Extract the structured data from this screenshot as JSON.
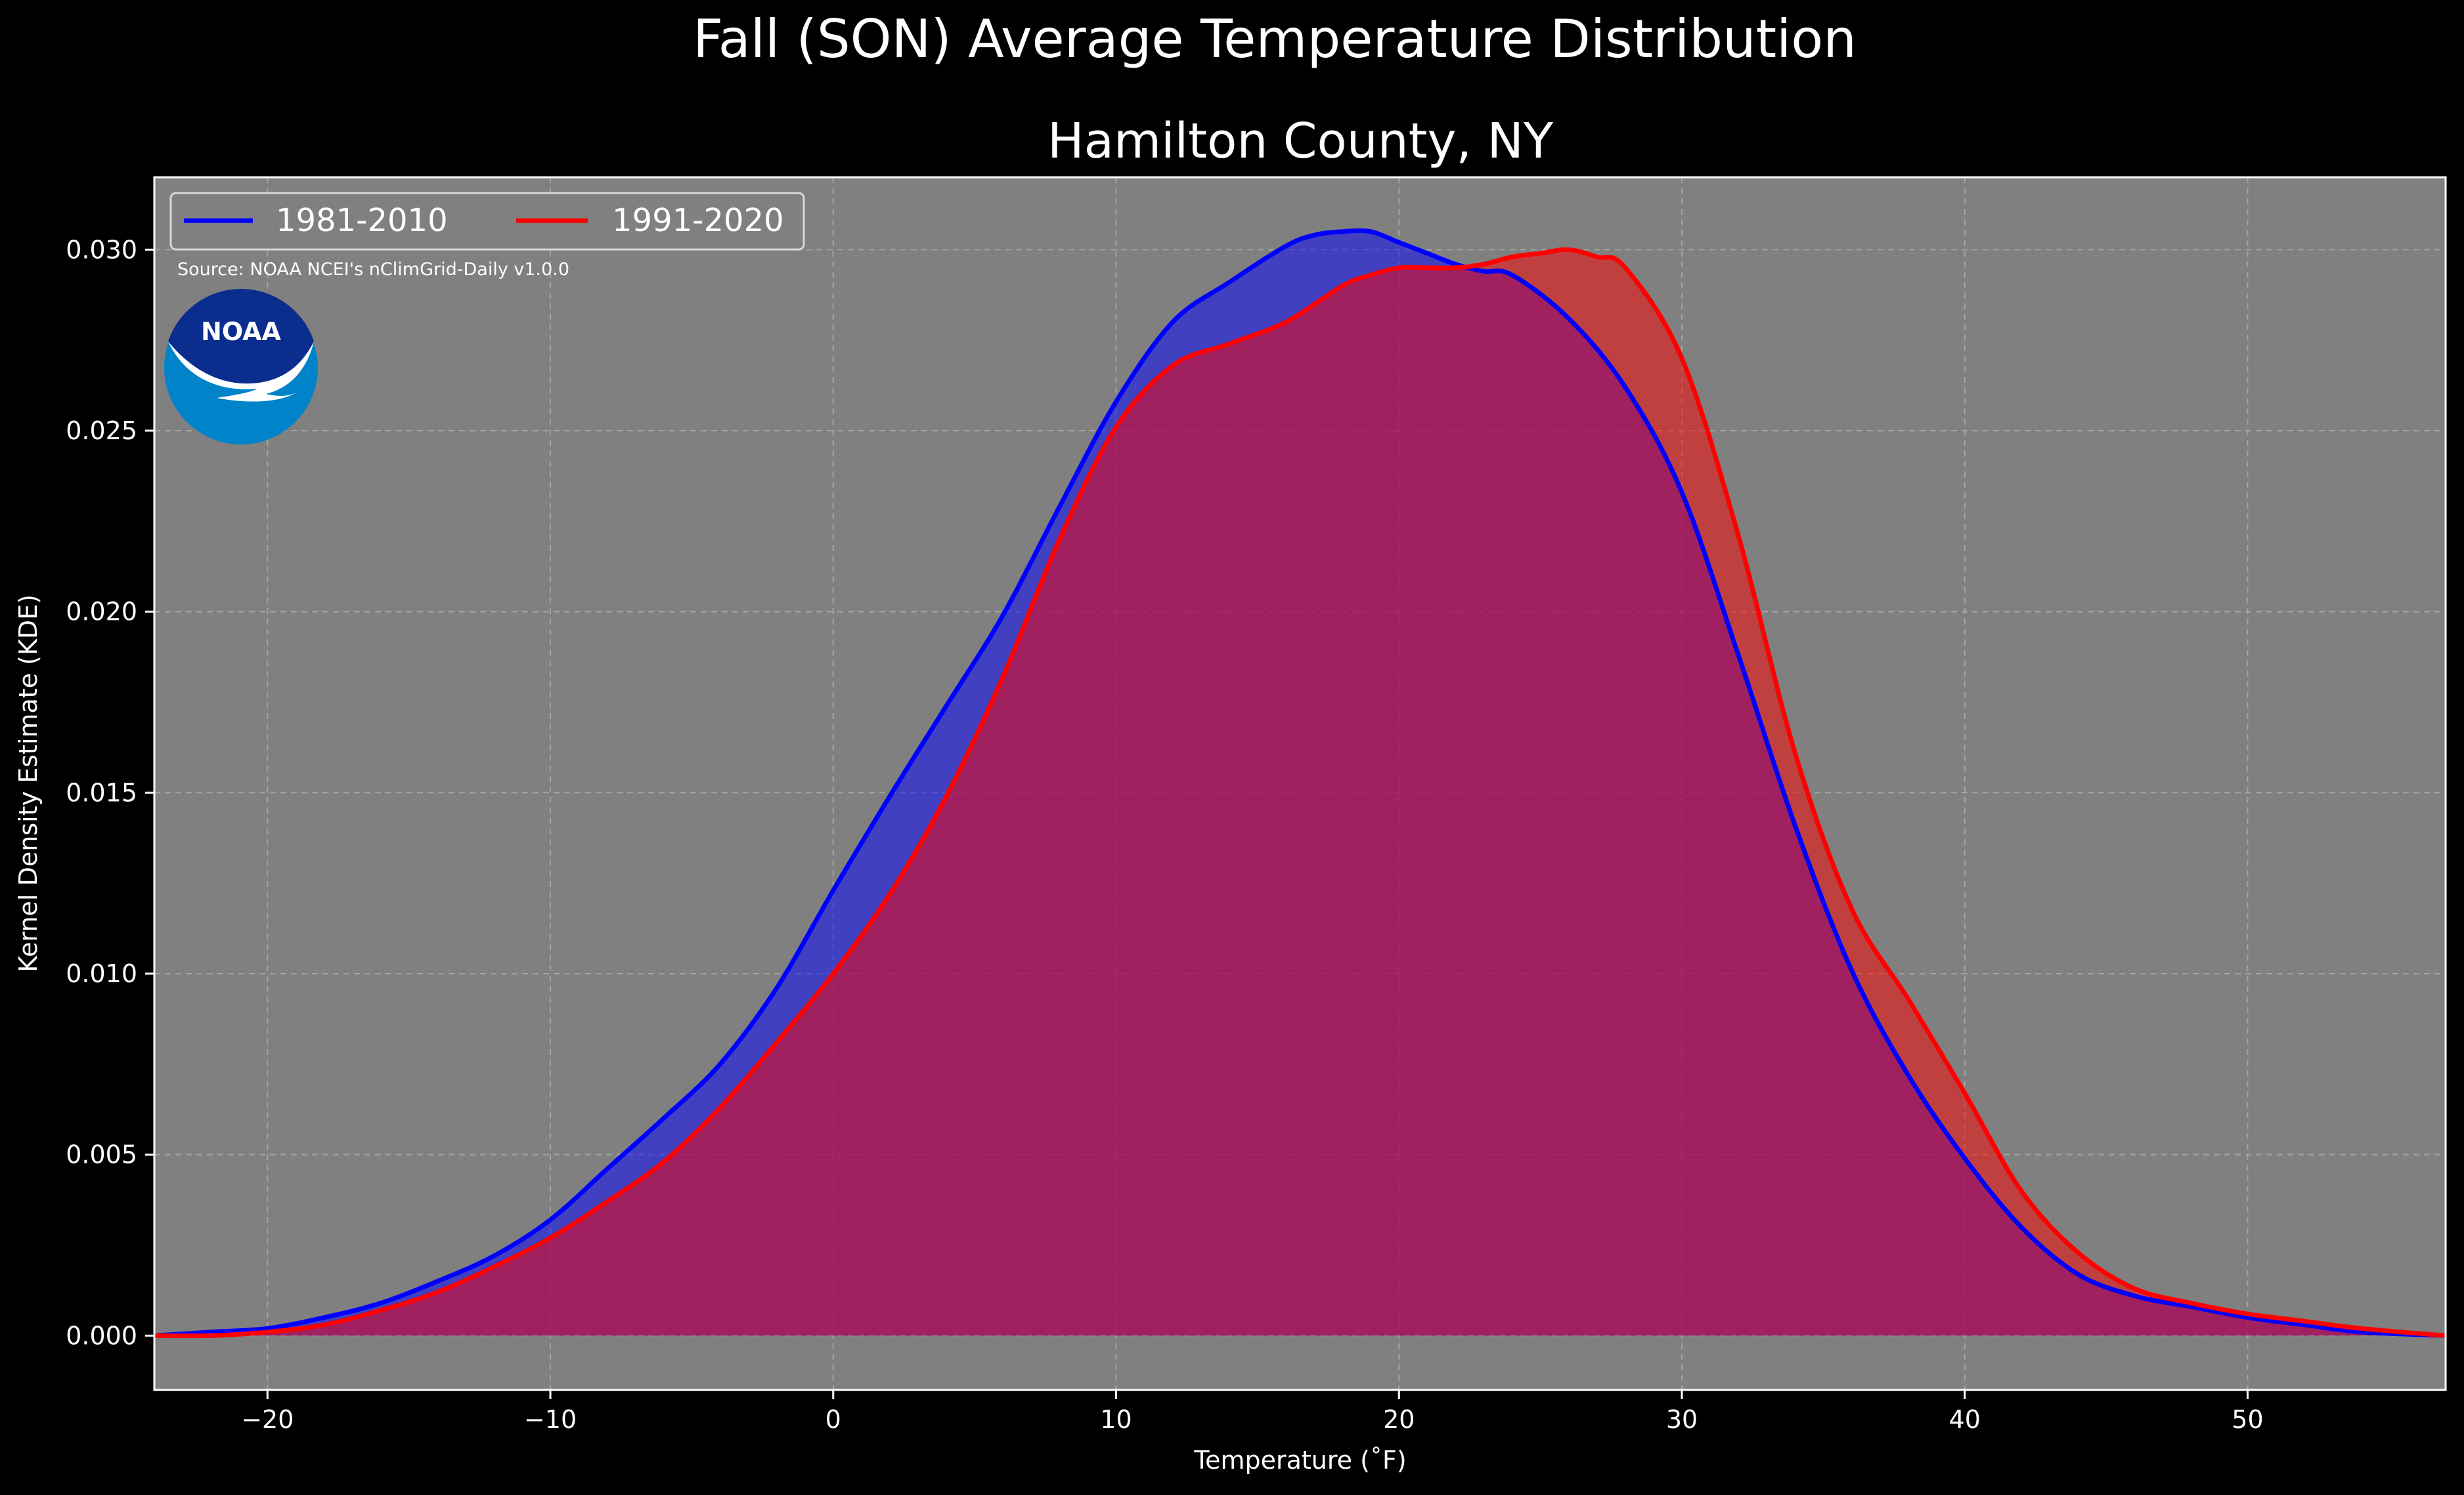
{
  "chart_data": {
    "type": "area",
    "title": "Fall (SON) Average Temperature Distribution",
    "subtitle": "Hamilton County, NY",
    "xlabel": "Temperature (˚F)",
    "ylabel": "Kernel Density Estimate (KDE)",
    "source_note": "Source: NOAA NCEI's nClimGrid-Daily v1.0.0",
    "logo_text": "NOAA",
    "xlim": [
      -24,
      57
    ],
    "ylim": [
      -0.0015,
      0.032
    ],
    "xticks": [
      -20,
      -10,
      0,
      10,
      20,
      30,
      40,
      50
    ],
    "xtick_labels": [
      "−20",
      "−10",
      "0",
      "10",
      "20",
      "30",
      "40",
      "50"
    ],
    "yticks": [
      0.0,
      0.005,
      0.01,
      0.015,
      0.02,
      0.025,
      0.03
    ],
    "ytick_labels": [
      "0.000",
      "0.005",
      "0.010",
      "0.015",
      "0.020",
      "0.025",
      "0.030"
    ],
    "grid": true,
    "legend_position": "top-left",
    "colors": {
      "background": "#000000",
      "plot_background": "#808080",
      "text": "#ffffff",
      "grid": "#b0b0b0"
    },
    "series": [
      {
        "name": "1981-2010",
        "color": "#0000ff",
        "fill": "#0000ff",
        "fill_opacity": 0.5,
        "x": [
          -24,
          -22,
          -20,
          -18,
          -16,
          -14,
          -12,
          -10,
          -8,
          -6,
          -4,
          -2,
          0,
          2,
          4,
          6,
          8,
          10,
          12,
          14,
          16,
          17,
          18,
          19,
          20,
          21,
          22,
          23,
          24,
          26,
          28,
          30,
          32,
          34,
          36,
          38,
          40,
          42,
          44,
          46,
          48,
          50,
          52,
          54,
          57
        ],
        "y": [
          0.0,
          0.0001,
          0.0002,
          0.0005,
          0.0009,
          0.0015,
          0.0022,
          0.0032,
          0.0046,
          0.006,
          0.0075,
          0.0096,
          0.0123,
          0.0149,
          0.0174,
          0.0199,
          0.0229,
          0.0258,
          0.028,
          0.0291,
          0.0301,
          0.0304,
          0.0305,
          0.0305,
          0.0302,
          0.0299,
          0.0296,
          0.0294,
          0.0293,
          0.0281,
          0.0262,
          0.0233,
          0.0188,
          0.0141,
          0.0101,
          0.0072,
          0.0049,
          0.003,
          0.0017,
          0.0011,
          0.0008,
          0.0005,
          0.0003,
          0.0001,
          0.0
        ]
      },
      {
        "name": "1991-2020",
        "color": "#ff0000",
        "fill": "#ff0000",
        "fill_opacity": 0.5,
        "x": [
          -24,
          -22,
          -20,
          -18,
          -16,
          -14,
          -12,
          -10,
          -8,
          -6,
          -4,
          -2,
          0,
          2,
          4,
          6,
          8,
          10,
          12,
          14,
          16,
          18,
          19,
          20,
          21,
          22,
          23,
          24,
          25,
          26,
          27,
          28,
          30,
          32,
          34,
          36,
          38,
          40,
          42,
          44,
          46,
          48,
          50,
          52,
          54,
          57
        ],
        "y": [
          0.0,
          0.0,
          0.0001,
          0.0003,
          0.0007,
          0.0012,
          0.0019,
          0.0027,
          0.0037,
          0.0048,
          0.0063,
          0.0081,
          0.01,
          0.0122,
          0.0149,
          0.0182,
          0.022,
          0.0251,
          0.0268,
          0.0274,
          0.028,
          0.029,
          0.0293,
          0.0295,
          0.0295,
          0.0295,
          0.0296,
          0.0298,
          0.0299,
          0.03,
          0.0298,
          0.0295,
          0.027,
          0.0221,
          0.0161,
          0.0118,
          0.0093,
          0.0067,
          0.004,
          0.0023,
          0.0013,
          0.0009,
          0.0006,
          0.0004,
          0.0002,
          0.0
        ]
      }
    ]
  }
}
